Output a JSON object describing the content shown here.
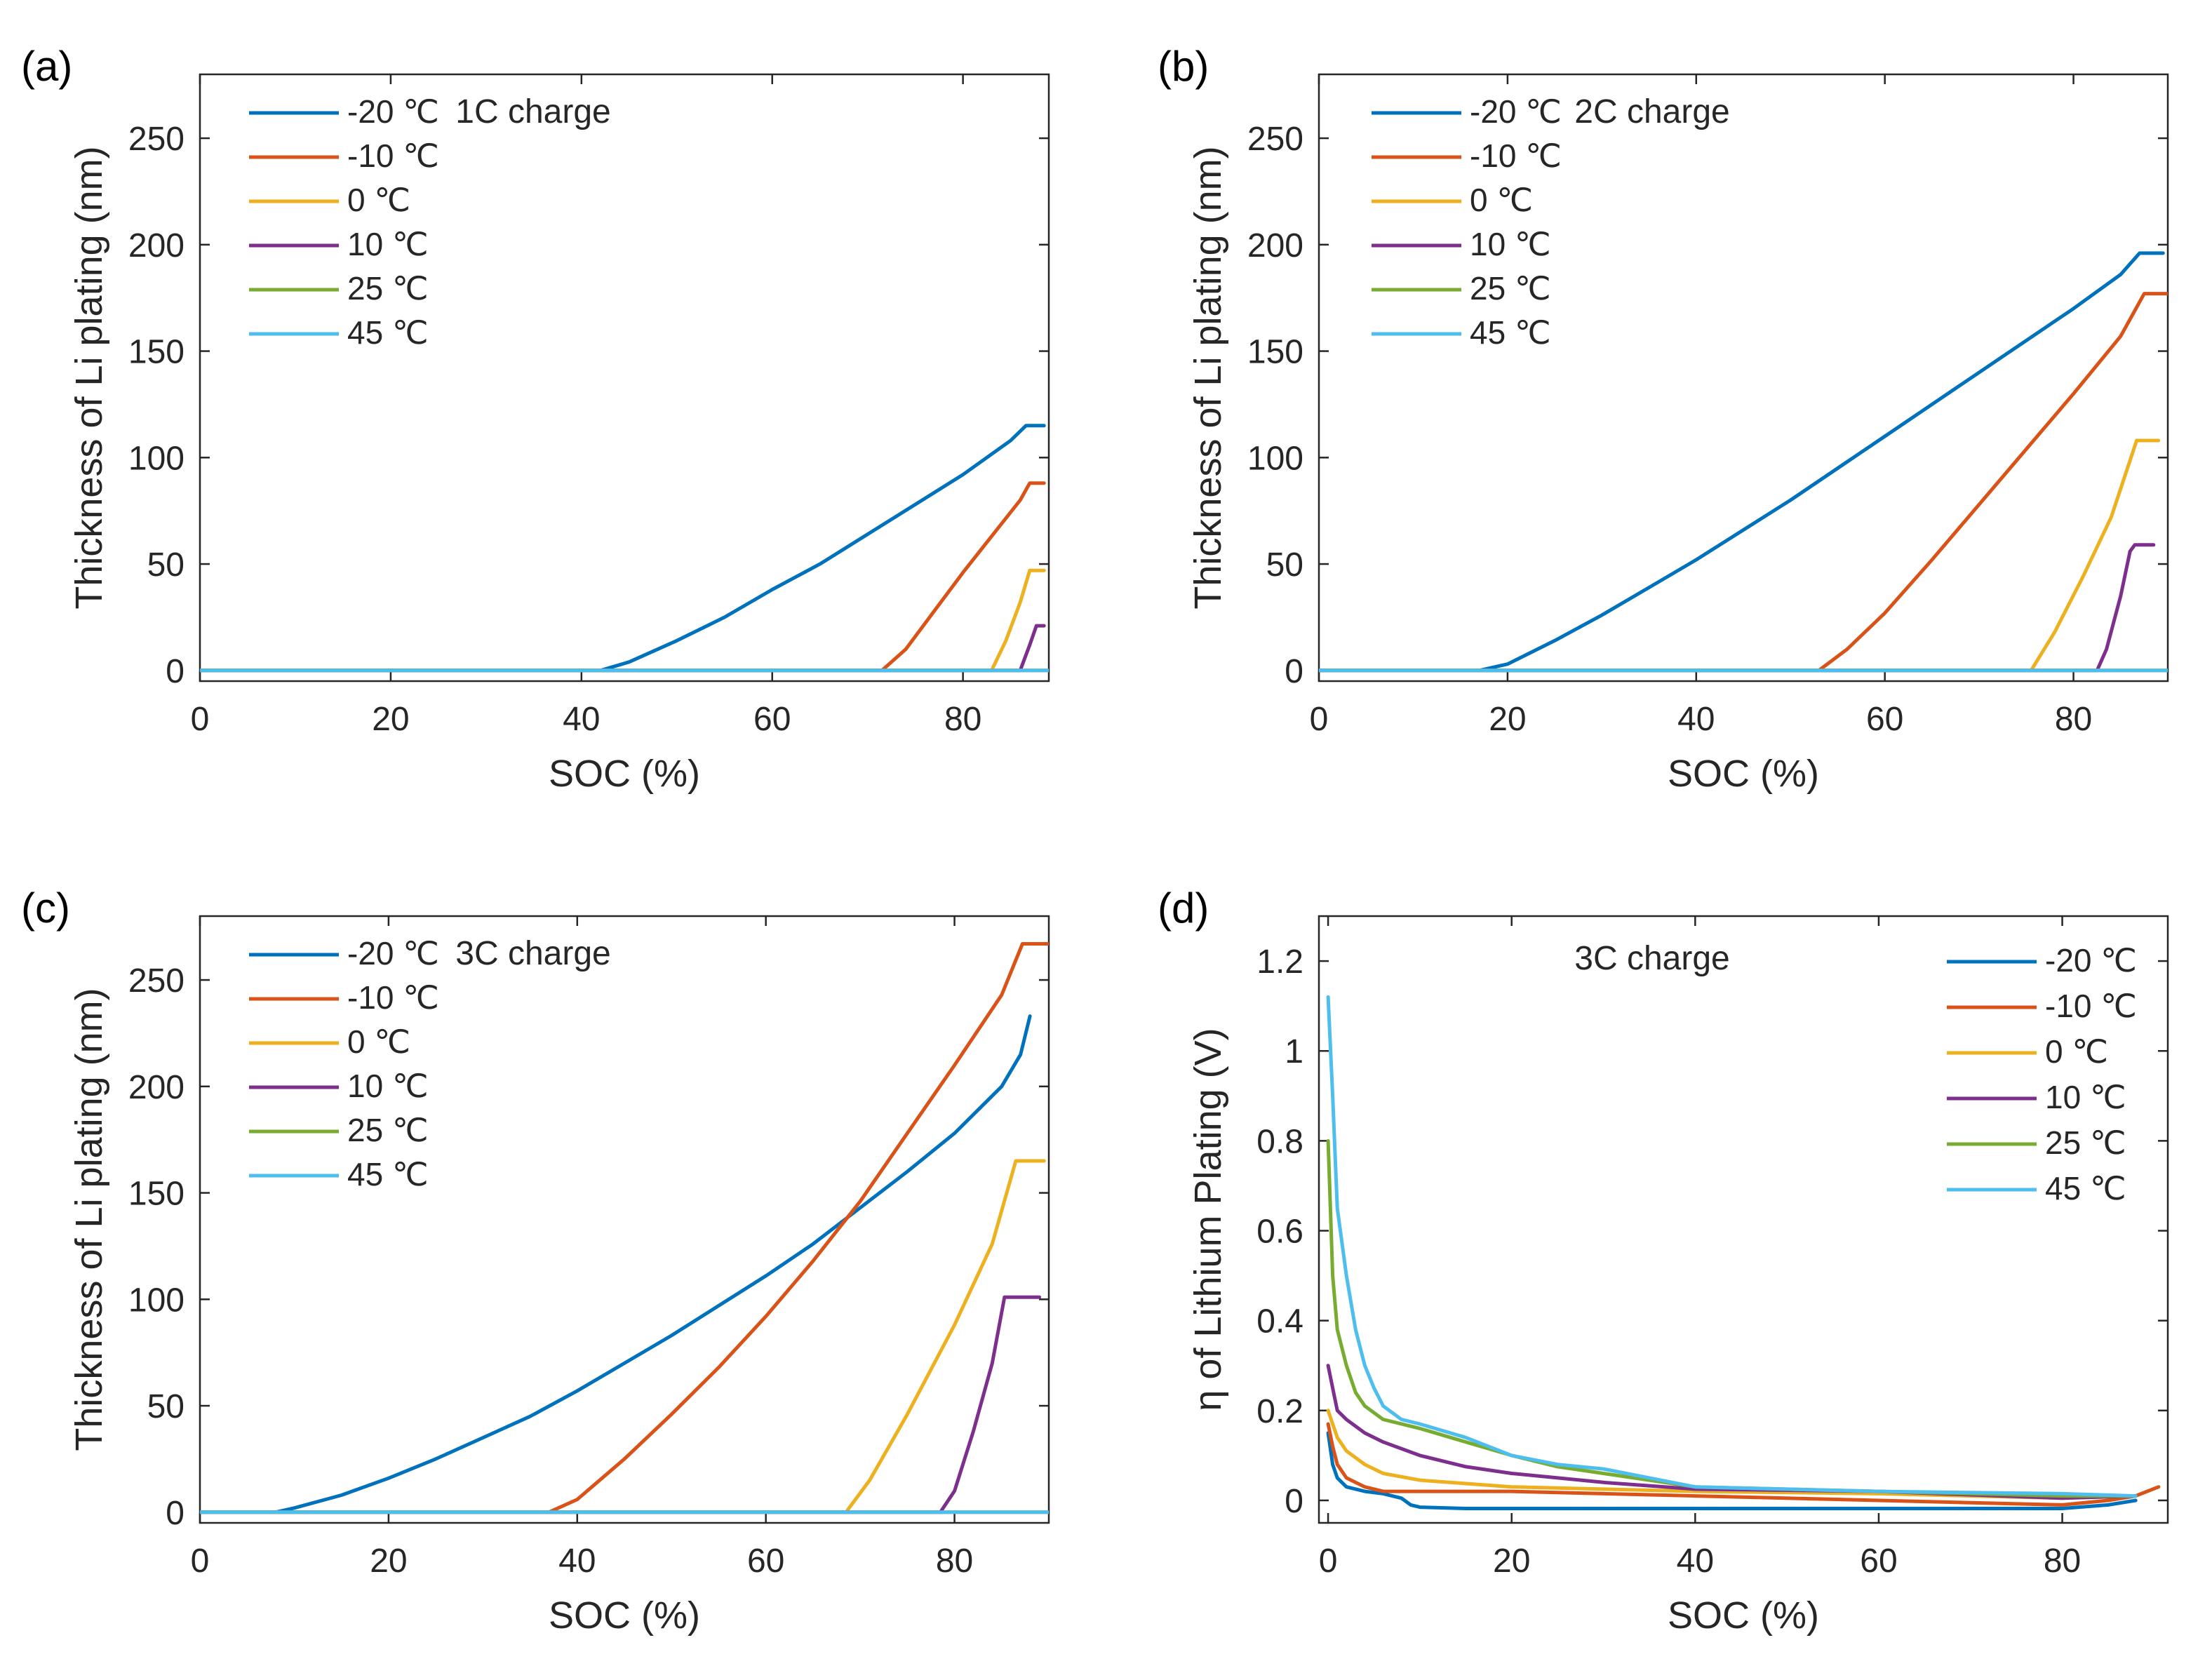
{
  "colors": {
    "-20": "#0072BD",
    "-10": "#D95319",
    "0": "#EDB120",
    "10": "#7E2F8E",
    "25": "#77AC30",
    "45": "#4DBEEE"
  },
  "chart_data": [
    {
      "panel_label": "(a)",
      "type": "line",
      "title": "1C charge",
      "xlabel": "SOC (%)",
      "ylabel": "Thickness of Li plating (nm)",
      "xlim": [
        0,
        89
      ],
      "ylim": [
        -5,
        280
      ],
      "xticks": [
        0,
        20,
        40,
        60,
        80
      ],
      "yticks": [
        0,
        50,
        100,
        150,
        200,
        250
      ],
      "legend_position": "top-left",
      "series": [
        {
          "name": "-20 ℃",
          "color_key": "-20",
          "points": [
            [
              0,
              0
            ],
            [
              42,
              0
            ],
            [
              45,
              4
            ],
            [
              50,
              14
            ],
            [
              55,
              25
            ],
            [
              60,
              38
            ],
            [
              65,
              50
            ],
            [
              70,
              64
            ],
            [
              75,
              78
            ],
            [
              80,
              92
            ],
            [
              85,
              108
            ],
            [
              86.6,
              115
            ],
            [
              88.5,
              115
            ]
          ]
        },
        {
          "name": "-10 ℃",
          "color_key": "-10",
          "points": [
            [
              0,
              0
            ],
            [
              71.5,
              0
            ],
            [
              74,
              10
            ],
            [
              77,
              28
            ],
            [
              80,
              46
            ],
            [
              83,
              63
            ],
            [
              86,
              80
            ],
            [
              87,
              88
            ],
            [
              88.5,
              88
            ]
          ]
        },
        {
          "name": "0 ℃",
          "color_key": "0",
          "points": [
            [
              0,
              0
            ],
            [
              83,
              0
            ],
            [
              84.5,
              14
            ],
            [
              86,
              32
            ],
            [
              87,
              47
            ],
            [
              88.5,
              47
            ]
          ]
        },
        {
          "name": "10 ℃",
          "color_key": "10",
          "points": [
            [
              0,
              0
            ],
            [
              86,
              0
            ],
            [
              87,
              12
            ],
            [
              87.7,
              21
            ],
            [
              88.5,
              21
            ]
          ]
        },
        {
          "name": "25 ℃",
          "color_key": "25",
          "points": [
            [
              0,
              0
            ],
            [
              89,
              0
            ]
          ]
        },
        {
          "name": "45 ℃",
          "color_key": "45",
          "points": [
            [
              0,
              0
            ],
            [
              89,
              0
            ]
          ]
        }
      ]
    },
    {
      "panel_label": "(b)",
      "type": "line",
      "title": "2C charge",
      "xlabel": "SOC (%)",
      "ylabel": "Thickness of Li plating (nm)",
      "xlim": [
        0,
        90
      ],
      "ylim": [
        -5,
        280
      ],
      "xticks": [
        0,
        20,
        40,
        60,
        80
      ],
      "yticks": [
        0,
        50,
        100,
        150,
        200,
        250
      ],
      "legend_position": "top-left",
      "series": [
        {
          "name": "-20 ℃",
          "color_key": "-20",
          "points": [
            [
              0,
              0
            ],
            [
              17,
              0
            ],
            [
              20,
              3
            ],
            [
              25,
              14
            ],
            [
              30,
              26
            ],
            [
              35,
              39
            ],
            [
              40,
              52
            ],
            [
              45,
              66
            ],
            [
              50,
              80
            ],
            [
              55,
              95
            ],
            [
              60,
              110
            ],
            [
              65,
              125
            ],
            [
              70,
              140
            ],
            [
              75,
              155
            ],
            [
              80,
              170
            ],
            [
              85,
              186
            ],
            [
              87,
              196
            ],
            [
              89.5,
              196
            ]
          ]
        },
        {
          "name": "-10 ℃",
          "color_key": "-10",
          "points": [
            [
              0,
              0
            ],
            [
              53,
              0
            ],
            [
              56,
              10
            ],
            [
              60,
              27
            ],
            [
              65,
              52
            ],
            [
              70,
              78
            ],
            [
              75,
              104
            ],
            [
              80,
              130
            ],
            [
              85,
              157
            ],
            [
              87.5,
              177
            ],
            [
              90,
              177
            ]
          ]
        },
        {
          "name": "0 ℃",
          "color_key": "0",
          "points": [
            [
              0,
              0
            ],
            [
              75.5,
              0
            ],
            [
              78,
              18
            ],
            [
              81,
              44
            ],
            [
              84,
              72
            ],
            [
              86.7,
              108
            ],
            [
              89,
              108
            ]
          ]
        },
        {
          "name": "10 ℃",
          "color_key": "10",
          "points": [
            [
              0,
              0
            ],
            [
              82.5,
              0
            ],
            [
              83.5,
              10
            ],
            [
              85,
              35
            ],
            [
              86,
              56
            ],
            [
              86.5,
              59
            ],
            [
              88.5,
              59
            ]
          ]
        },
        {
          "name": "25 ℃",
          "color_key": "25",
          "points": [
            [
              0,
              0
            ],
            [
              90,
              0
            ]
          ]
        },
        {
          "name": "45 ℃",
          "color_key": "45",
          "points": [
            [
              0,
              0
            ],
            [
              90,
              0
            ]
          ]
        }
      ]
    },
    {
      "panel_label": "(c)",
      "type": "line",
      "title": "3C charge",
      "xlabel": "SOC (%)",
      "ylabel": "Thickness of Li plating (nm)",
      "xlim": [
        0,
        90
      ],
      "ylim": [
        -5,
        280
      ],
      "xticks": [
        0,
        20,
        40,
        60,
        80
      ],
      "yticks": [
        0,
        50,
        100,
        150,
        200,
        250
      ],
      "legend_position": "top-left",
      "series": [
        {
          "name": "-20 ℃",
          "color_key": "-20",
          "points": [
            [
              0,
              0
            ],
            [
              8,
              0
            ],
            [
              10,
              2
            ],
            [
              15,
              8
            ],
            [
              20,
              16
            ],
            [
              25,
              25
            ],
            [
              30,
              35
            ],
            [
              35,
              45
            ],
            [
              40,
              57
            ],
            [
              45,
              70
            ],
            [
              50,
              83
            ],
            [
              55,
              97
            ],
            [
              60,
              111
            ],
            [
              65,
              126
            ],
            [
              70,
              143
            ],
            [
              75,
              160
            ],
            [
              80,
              178
            ],
            [
              85,
              200
            ],
            [
              87,
              215
            ],
            [
              88,
              233
            ]
          ]
        },
        {
          "name": "-10 ℃",
          "color_key": "-10",
          "points": [
            [
              0,
              0
            ],
            [
              37,
              0
            ],
            [
              40,
              6
            ],
            [
              45,
              25
            ],
            [
              50,
              46
            ],
            [
              55,
              68
            ],
            [
              60,
              92
            ],
            [
              65,
              118
            ],
            [
              70,
              146
            ],
            [
              75,
              178
            ],
            [
              80,
              210
            ],
            [
              85,
              243
            ],
            [
              87.2,
              267
            ],
            [
              90,
              267
            ]
          ]
        },
        {
          "name": "0 ℃",
          "color_key": "0",
          "points": [
            [
              0,
              0
            ],
            [
              68.5,
              0
            ],
            [
              71,
              15
            ],
            [
              75,
              46
            ],
            [
              80,
              88
            ],
            [
              84,
              126
            ],
            [
              86.5,
              165
            ],
            [
              89.5,
              165
            ]
          ]
        },
        {
          "name": "10 ℃",
          "color_key": "10",
          "points": [
            [
              0,
              0
            ],
            [
              78.5,
              0
            ],
            [
              80,
              10
            ],
            [
              82,
              38
            ],
            [
              84,
              70
            ],
            [
              85.3,
              101
            ],
            [
              89,
              101
            ]
          ]
        },
        {
          "name": "25 ℃",
          "color_key": "25",
          "points": [
            [
              0,
              0
            ],
            [
              90,
              0
            ]
          ]
        },
        {
          "name": "45 ℃",
          "color_key": "45",
          "points": [
            [
              0,
              0
            ],
            [
              90,
              0
            ]
          ]
        }
      ]
    },
    {
      "panel_label": "(d)",
      "type": "line",
      "title": "3C charge",
      "xlabel": "SOC (%)",
      "ylabel": "η of Lithium Plating (V)",
      "xlim": [
        -1,
        91.5
      ],
      "ylim": [
        -0.05,
        1.3
      ],
      "xticks": [
        0,
        20,
        40,
        60,
        80
      ],
      "yticks": [
        0,
        0.2,
        0.4,
        0.6,
        0.8,
        1,
        1.2
      ],
      "legend_position": "top-right",
      "series": [
        {
          "name": "-20 ℃",
          "color_key": "-20",
          "points": [
            [
              0,
              0.15
            ],
            [
              0.5,
              0.08
            ],
            [
              1,
              0.05
            ],
            [
              2,
              0.03
            ],
            [
              4,
              0.02
            ],
            [
              6,
              0.015
            ],
            [
              8,
              0.005
            ],
            [
              9,
              -0.01
            ],
            [
              10,
              -0.015
            ],
            [
              15,
              -0.018
            ],
            [
              30,
              -0.018
            ],
            [
              50,
              -0.018
            ],
            [
              70,
              -0.018
            ],
            [
              80,
              -0.018
            ],
            [
              85,
              -0.01
            ],
            [
              88,
              0
            ]
          ]
        },
        {
          "name": "-10 ℃",
          "color_key": "-10",
          "points": [
            [
              0,
              0.17
            ],
            [
              0.5,
              0.12
            ],
            [
              1,
              0.08
            ],
            [
              2,
              0.05
            ],
            [
              4,
              0.03
            ],
            [
              6,
              0.02
            ],
            [
              20,
              0.02
            ],
            [
              40,
              0.01
            ],
            [
              60,
              0.0
            ],
            [
              80,
              -0.01
            ],
            [
              85,
              0
            ],
            [
              88,
              0.01
            ],
            [
              90.5,
              0.03
            ]
          ]
        },
        {
          "name": "0 ℃",
          "color_key": "0",
          "points": [
            [
              0,
              0.2
            ],
            [
              0.5,
              0.17
            ],
            [
              1,
              0.14
            ],
            [
              2,
              0.11
            ],
            [
              4,
              0.08
            ],
            [
              6,
              0.06
            ],
            [
              10,
              0.045
            ],
            [
              20,
              0.03
            ],
            [
              30,
              0.025
            ],
            [
              40,
              0.02
            ],
            [
              60,
              0.015
            ],
            [
              80,
              0.005
            ],
            [
              88,
              0.01
            ]
          ]
        },
        {
          "name": "10 ℃",
          "color_key": "10",
          "points": [
            [
              0,
              0.3
            ],
            [
              0.5,
              0.25
            ],
            [
              1,
              0.2
            ],
            [
              2,
              0.18
            ],
            [
              4,
              0.15
            ],
            [
              6,
              0.13
            ],
            [
              10,
              0.1
            ],
            [
              15,
              0.075
            ],
            [
              20,
              0.06
            ],
            [
              30,
              0.04
            ],
            [
              40,
              0.025
            ],
            [
              60,
              0.02
            ],
            [
              80,
              0.005
            ],
            [
              88,
              0.01
            ]
          ]
        },
        {
          "name": "25 ℃",
          "color_key": "25",
          "points": [
            [
              0,
              0.8
            ],
            [
              0.5,
              0.5
            ],
            [
              1,
              0.38
            ],
            [
              2,
              0.3
            ],
            [
              3,
              0.24
            ],
            [
              4,
              0.21
            ],
            [
              6,
              0.18
            ],
            [
              10,
              0.16
            ],
            [
              15,
              0.13
            ],
            [
              20,
              0.1
            ],
            [
              25,
              0.075
            ],
            [
              30,
              0.06
            ],
            [
              40,
              0.03
            ],
            [
              60,
              0.02
            ],
            [
              80,
              0.01
            ],
            [
              88,
              0.01
            ]
          ]
        },
        {
          "name": "45 ℃",
          "color_key": "45",
          "points": [
            [
              0,
              1.12
            ],
            [
              0.5,
              0.9
            ],
            [
              1,
              0.65
            ],
            [
              2,
              0.5
            ],
            [
              3,
              0.38
            ],
            [
              4,
              0.3
            ],
            [
              5,
              0.25
            ],
            [
              6,
              0.21
            ],
            [
              8,
              0.18
            ],
            [
              10,
              0.17
            ],
            [
              15,
              0.14
            ],
            [
              20,
              0.1
            ],
            [
              25,
              0.08
            ],
            [
              30,
              0.07
            ],
            [
              40,
              0.03
            ],
            [
              60,
              0.02
            ],
            [
              80,
              0.015
            ],
            [
              88,
              0.01
            ]
          ]
        }
      ]
    }
  ]
}
